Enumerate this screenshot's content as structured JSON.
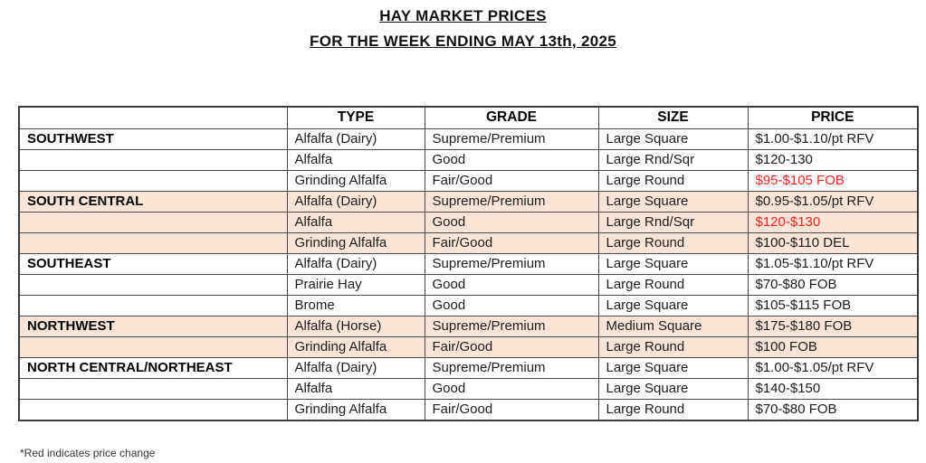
{
  "title": {
    "line1": "HAY MARKET PRICES",
    "line2": "FOR THE WEEK ENDING MAY 13th, 2025"
  },
  "table": {
    "headers": {
      "region": "",
      "type": "TYPE",
      "grade": "GRADE",
      "size": "SIZE",
      "price": "PRICE"
    },
    "rows": [
      {
        "region": "SOUTHWEST",
        "type": "Alfalfa (Dairy)",
        "grade": "Supreme/Premium",
        "size": "Large Square",
        "price": "$1.00-$1.10/pt RFV",
        "highlight": false,
        "price_red": false
      },
      {
        "region": "",
        "type": "Alfalfa",
        "grade": "Good",
        "size": "Large Rnd/Sqr",
        "price": "$120-130",
        "highlight": false,
        "price_red": false
      },
      {
        "region": "",
        "type": "Grinding Alfalfa",
        "grade": "Fair/Good",
        "size": "Large Round",
        "price": "$95-$105 FOB",
        "highlight": false,
        "price_red": true
      },
      {
        "region": "SOUTH CENTRAL",
        "type": "Alfalfa (Dairy)",
        "grade": "Supreme/Premium",
        "size": "Large Square",
        "price": "$0.95-$1.05/pt RFV",
        "highlight": true,
        "price_red": false
      },
      {
        "region": "",
        "type": "Alfalfa",
        "grade": "Good",
        "size": "Large Rnd/Sqr",
        "price": "$120-$130",
        "highlight": true,
        "price_red": true
      },
      {
        "region": "",
        "type": "Grinding Alfalfa",
        "grade": "Fair/Good",
        "size": "Large Round",
        "price": "$100-$110 DEL",
        "highlight": true,
        "price_red": false
      },
      {
        "region": "SOUTHEAST",
        "type": "Alfalfa (Dairy)",
        "grade": "Supreme/Premium",
        "size": "Large Square",
        "price": "$1.05-$1.10/pt RFV",
        "highlight": false,
        "price_red": false
      },
      {
        "region": "",
        "type": "Prairie Hay",
        "grade": "Good",
        "size": "Large Round",
        "price": "$70-$80 FOB",
        "highlight": false,
        "price_red": false
      },
      {
        "region": "",
        "type": "Brome",
        "grade": "Good",
        "size": "Large Square",
        "price": "$105-$115 FOB",
        "highlight": false,
        "price_red": false
      },
      {
        "region": "NORTHWEST",
        "type": "Alfalfa (Horse)",
        "grade": "Supreme/Premium",
        "size": "Medium Square",
        "price": "$175-$180 FOB",
        "highlight": true,
        "price_red": false
      },
      {
        "region": "",
        "type": "Grinding Alfalfa",
        "grade": "Fair/Good",
        "size": "Large Round",
        "price": "$100 FOB",
        "highlight": true,
        "price_red": false
      },
      {
        "region": "NORTH CENTRAL/NORTHEAST",
        "type": "Alfalfa (Dairy)",
        "grade": "Supreme/Premium",
        "size": "Large Square",
        "price": "$1.00-$1.05/pt RFV",
        "highlight": false,
        "price_red": false
      },
      {
        "region": "",
        "type": "Alfalfa",
        "grade": "Good",
        "size": "Large Square",
        "price": "$140-$150",
        "highlight": false,
        "price_red": false
      },
      {
        "region": "",
        "type": "Grinding Alfalfa",
        "grade": "Fair/Good",
        "size": "Large Round",
        "price": "$70-$80 FOB",
        "highlight": false,
        "price_red": false
      }
    ]
  },
  "footnote": "*Red indicates price change",
  "colors": {
    "highlight_bg": "#FAE4D5",
    "price_change_red": "#F82222"
  }
}
